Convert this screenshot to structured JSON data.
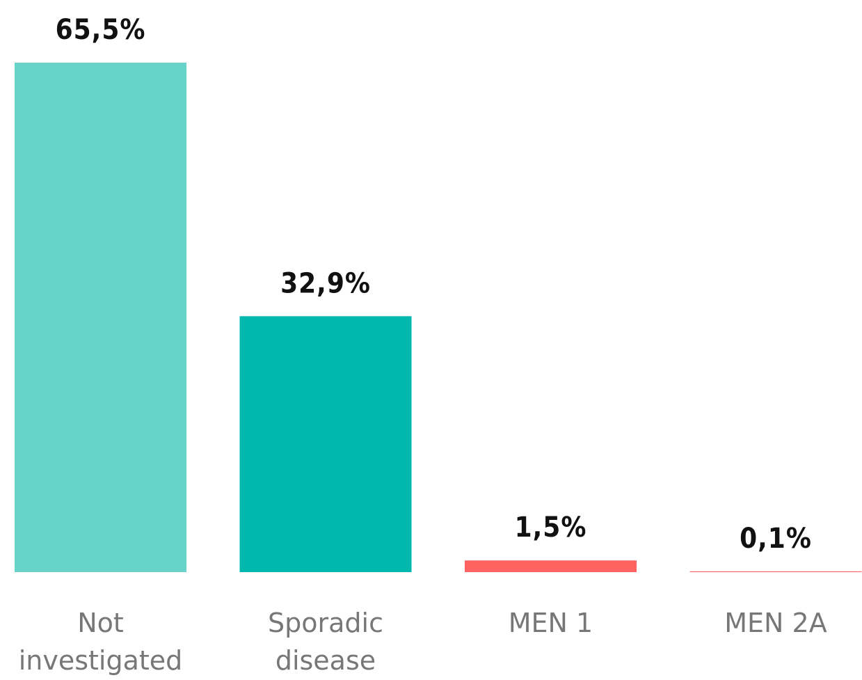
{
  "chart_data": {
    "type": "bar",
    "categories": [
      "Not investigated",
      "Sporadic disease",
      "MEN 1",
      "MEN 2A"
    ],
    "values": [
      65.5,
      32.9,
      1.5,
      0.1
    ],
    "value_labels": [
      "65,5%",
      "32,9%",
      "1,5%",
      "0,1%"
    ],
    "colors": [
      "#68d4c9",
      "#00b8ad",
      "#ff6361",
      "#ff6361"
    ]
  }
}
